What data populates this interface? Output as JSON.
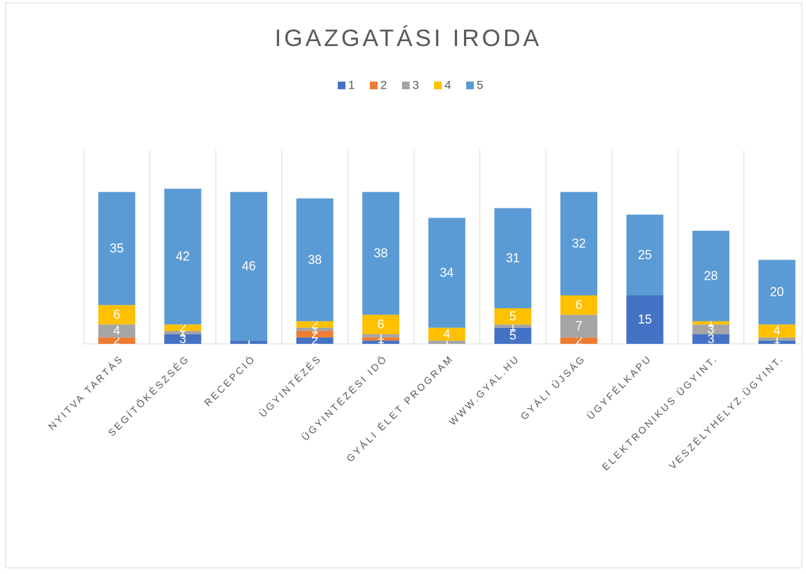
{
  "chart_data": {
    "type": "stacked_bar",
    "title": "IGAZGATÁSI IRODA",
    "categories": [
      "NYITVA TARTÁS",
      "SEGÍTŐKÉSZSÉG",
      "RECEPCIÓ",
      "ÜGYINTÉZÉS",
      "ÜGYINTÉZÉSI IDŐ",
      "GYÁLI ÉLET PROGRAM",
      "WWW.GYAL.HU",
      "GYÁLI ÚJSÁG",
      "ÜGYFÉLKAPU",
      "ELEKTRONIKUS ÜGYINT.",
      "VESZÉLYHELYZ.ÜGYINT."
    ],
    "series": [
      {
        "name": "1",
        "color": "#4472c4",
        "values": [
          0,
          3,
          1,
          2,
          1,
          0,
          5,
          0,
          15,
          3,
          1
        ]
      },
      {
        "name": "2",
        "color": "#ed7d31",
        "values": [
          2,
          0,
          0,
          2,
          1,
          0,
          0,
          2,
          0,
          0,
          0
        ]
      },
      {
        "name": "3",
        "color": "#a5a5a5",
        "values": [
          4,
          1,
          0,
          1,
          1,
          1,
          1,
          7,
          0,
          3,
          1
        ]
      },
      {
        "name": "4",
        "color": "#ffc000",
        "values": [
          6,
          2,
          0,
          2,
          6,
          4,
          5,
          6,
          0,
          1,
          4
        ]
      },
      {
        "name": "5",
        "color": "#5b9bd5",
        "values": [
          35,
          42,
          46,
          38,
          38,
          34,
          31,
          32,
          25,
          28,
          20
        ]
      }
    ],
    "ylim": [
      0,
      60
    ],
    "legend": "top"
  }
}
